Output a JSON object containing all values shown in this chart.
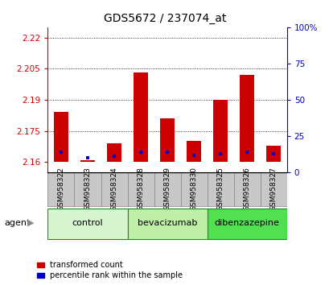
{
  "title": "GDS5672 / 237074_at",
  "samples": [
    "GSM958322",
    "GSM958323",
    "GSM958324",
    "GSM958328",
    "GSM958329",
    "GSM958330",
    "GSM958325",
    "GSM958326",
    "GSM958327"
  ],
  "red_values": [
    2.184,
    2.161,
    2.169,
    2.203,
    2.181,
    2.17,
    2.19,
    2.202,
    2.168
  ],
  "blue_values_pct": [
    14,
    10,
    11,
    14,
    14,
    12,
    13,
    14,
    13
  ],
  "baseline": 2.16,
  "ylim_left": [
    2.155,
    2.225
  ],
  "ylim_right": [
    0,
    100
  ],
  "yticks_left": [
    2.16,
    2.175,
    2.19,
    2.205,
    2.22
  ],
  "yticks_right": [
    0,
    25,
    50,
    75,
    100
  ],
  "ytick_labels_left": [
    "2.16",
    "2.175",
    "2.19",
    "2.205",
    "2.22"
  ],
  "ytick_labels_right": [
    "0",
    "25",
    "50",
    "75",
    "100%"
  ],
  "groups": [
    {
      "label": "control",
      "indices": [
        0,
        1,
        2
      ],
      "color": "#d8f5d0"
    },
    {
      "label": "bevacizumab",
      "indices": [
        3,
        4,
        5
      ],
      "color": "#c0f0a8"
    },
    {
      "label": "dibenzazepine",
      "indices": [
        6,
        7,
        8
      ],
      "color": "#50e050"
    }
  ],
  "bar_width": 0.55,
  "red_color": "#cc0000",
  "blue_color": "#0000cc",
  "left_axis_color": "#cc0000",
  "right_axis_color": "#0000cc",
  "bg_color": "#ffffff",
  "plot_bg": "#ffffff",
  "xtick_bg": "#c8c8c8",
  "agent_label": "agent",
  "legend_red": "transformed count",
  "legend_blue": "percentile rank within the sample",
  "grid_color": "#000000",
  "border_color": "#000000"
}
